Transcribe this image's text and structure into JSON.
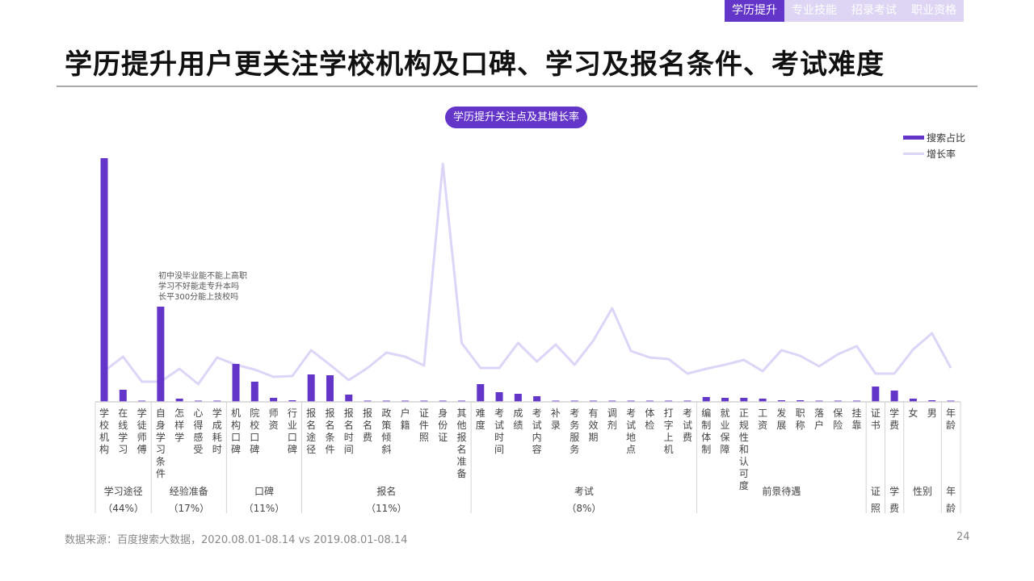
{
  "tabs": [
    {
      "label": "学历提升",
      "active": true
    },
    {
      "label": "专业技能",
      "active": false
    },
    {
      "label": "招录考试",
      "active": false
    },
    {
      "label": "职业资格",
      "active": false
    }
  ],
  "title": "学历提升用户更关注学校机构及口碑、学习及报名条件、考试难度",
  "chart_pill": "学历提升关注点及其增长率",
  "legend": {
    "bar_label": "搜索占比",
    "line_label": "增长率"
  },
  "annotation": [
    "初中没毕业能不能上高职",
    "学习不好能走专升本吗",
    "长平300分能上技校吗"
  ],
  "footer": {
    "source": "数据来源：百度搜索大数据，2020.08.01-08.14 vs 2019.08.01-08.14",
    "page": "24"
  },
  "colors": {
    "bar": "#6435c9",
    "line": "#ddd5f8",
    "tab_active": "#6435c9",
    "tab_inactive": "#ddd5f3"
  },
  "chart_data": {
    "type": "bar+line",
    "title": "学历提升关注点及其增长率",
    "categories": [
      "学校机构",
      "在线学习",
      "学徒师傅",
      "自身学习条件",
      "怎样学",
      "心得感受",
      "学成耗时",
      "机构口碑",
      "院校口碑",
      "师资",
      "行业口碑",
      "报名途径",
      "报名条件",
      "报名时间",
      "报名费",
      "政策倾斜",
      "户籍",
      "证件照",
      "身份证",
      "其他报名准备",
      "难度",
      "考试时间",
      "成绩",
      "考试内容",
      "补录",
      "考务服务",
      "有效期",
      "调剂",
      "考试地点",
      "体检",
      "打字上机",
      "考试费",
      "编制体制",
      "就业保障",
      "正规性和认可度",
      "工资",
      "发展",
      "职称",
      "落户",
      "保险",
      "挂靠",
      "证书",
      "学费",
      "女",
      "男",
      "年龄"
    ],
    "series": [
      {
        "name": "搜索占比",
        "type": "bar",
        "values": [
          302,
          15,
          1,
          118,
          4,
          1,
          1,
          47,
          25,
          5,
          2,
          34,
          33,
          9,
          1,
          1,
          1,
          1,
          1,
          1,
          22,
          12,
          10,
          7,
          1,
          1,
          1,
          1,
          1,
          1,
          1,
          1,
          6,
          5,
          5,
          4,
          2,
          2,
          1,
          1,
          1,
          19,
          14,
          4,
          2,
          1
        ]
      },
      {
        "name": "增长率",
        "type": "line",
        "values": [
          38,
          56,
          25,
          25,
          41,
          22,
          55,
          46,
          40,
          31,
          32,
          64,
          46,
          27,
          42,
          61,
          56,
          45,
          295,
          73,
          42,
          42,
          73,
          50,
          71,
          46,
          76,
          116,
          63,
          55,
          53,
          35,
          41,
          46,
          52,
          38,
          64,
          57,
          44,
          59,
          69,
          35,
          35,
          65,
          85,
          42
        ]
      }
    ],
    "groups": [
      {
        "name": "学习途径",
        "share": "（44%）",
        "count": 3
      },
      {
        "name": "经验准备",
        "share": "（17%）",
        "count": 4
      },
      {
        "name": "口碑",
        "share": "（11%）",
        "count": 4
      },
      {
        "name": "报名",
        "share": "（11%）",
        "count": 9
      },
      {
        "name": "考试",
        "share": "（8%）",
        "count": 12
      },
      {
        "name": "前景待遇",
        "share": "",
        "count": 9
      },
      {
        "name": "证照",
        "share": "",
        "count": 1
      },
      {
        "name": "学费",
        "share": "",
        "count": 1
      },
      {
        "name": "性别",
        "share": "",
        "count": 2
      },
      {
        "name": "年龄",
        "share": "",
        "count": 1
      }
    ],
    "annotation": "初中没毕业能不能上高职 / 学习不好能走专升本吗 / 长平300分能上技校吗",
    "legend_position": "top-right",
    "grid": false,
    "note": "values are relative pixel heights estimated from the chart (no axis shown)"
  }
}
